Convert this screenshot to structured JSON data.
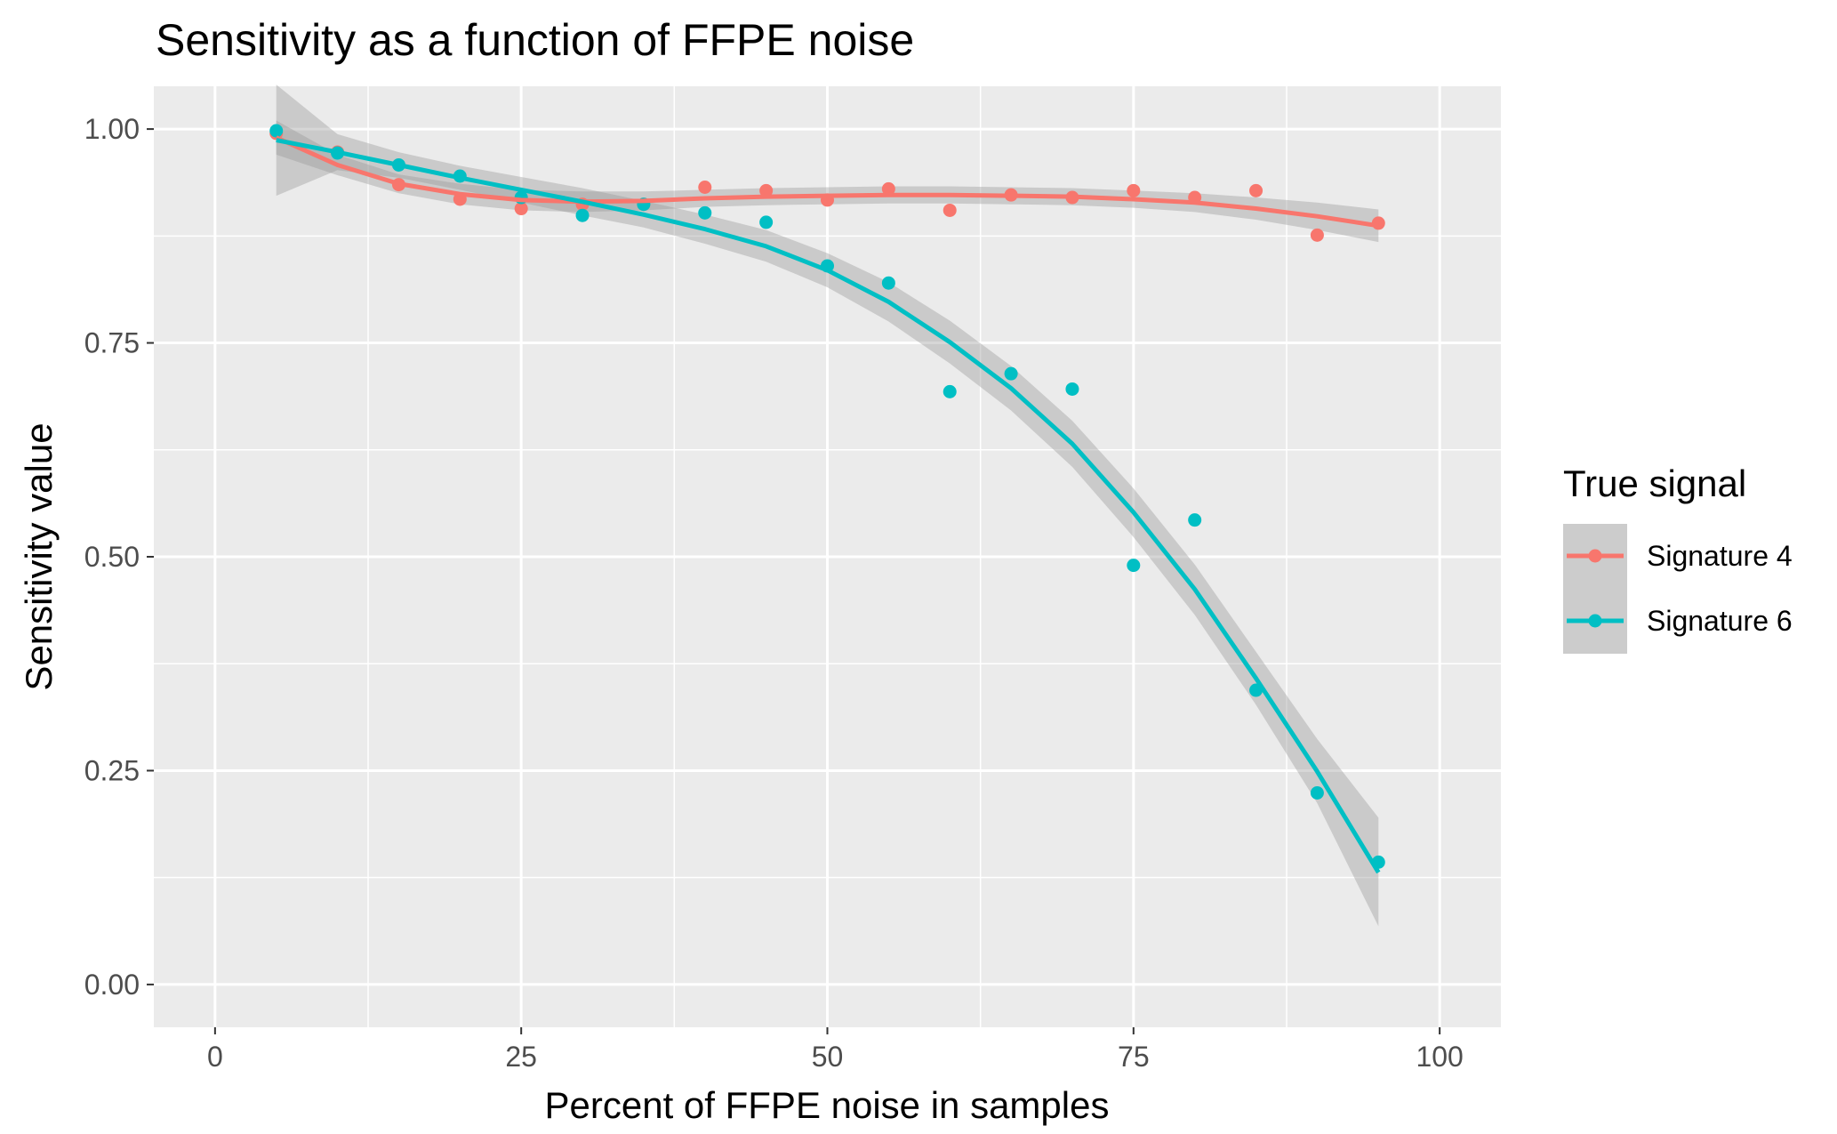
{
  "chart_data": {
    "type": "scatter",
    "title": "Sensitivity as a function of FFPE noise",
    "xlabel": "Percent of FFPE noise in samples",
    "ylabel": "Sensitivity value",
    "xlim": [
      -5,
      105
    ],
    "ylim": [
      -0.05,
      1.05
    ],
    "x_ticks": [
      0,
      25,
      50,
      75,
      100
    ],
    "x_tick_labels": [
      "0",
      "25",
      "50",
      "75",
      "100"
    ],
    "y_ticks": [
      0,
      0.25,
      0.5,
      0.75,
      1.0
    ],
    "y_tick_labels": [
      "0.00",
      "0.25",
      "0.50",
      "0.75",
      "1.00"
    ],
    "grid": true,
    "legend": {
      "title": "True signal",
      "position": "right"
    },
    "smoothing": "loess with confidence band",
    "series": [
      {
        "name": "Signature 4",
        "color": "#f8766d",
        "x": [
          5,
          10,
          15,
          20,
          25,
          30,
          35,
          40,
          45,
          50,
          55,
          60,
          65,
          70,
          75,
          80,
          85,
          90,
          95
        ],
        "y": [
          0.995,
          0.973,
          0.935,
          0.918,
          0.907,
          0.912,
          0.912,
          0.932,
          0.928,
          0.917,
          0.93,
          0.905,
          0.923,
          0.92,
          0.928,
          0.92,
          0.928,
          0.876,
          0.89
        ],
        "fit": [
          0.99,
          0.958,
          0.936,
          0.924,
          0.917,
          0.915,
          0.916,
          0.919,
          0.921,
          0.922,
          0.923,
          0.923,
          0.922,
          0.921,
          0.918,
          0.914,
          0.907,
          0.898,
          0.887
        ],
        "fit_lower": [
          0.97,
          0.946,
          0.925,
          0.912,
          0.905,
          0.903,
          0.905,
          0.909,
          0.911,
          0.912,
          0.913,
          0.913,
          0.912,
          0.911,
          0.908,
          0.903,
          0.894,
          0.882,
          0.868
        ],
        "fit_upper": [
          1.01,
          0.97,
          0.947,
          0.936,
          0.929,
          0.927,
          0.927,
          0.929,
          0.931,
          0.932,
          0.933,
          0.933,
          0.932,
          0.931,
          0.928,
          0.925,
          0.92,
          0.914,
          0.906
        ]
      },
      {
        "name": "Signature 6",
        "color": "#00bfc4",
        "x": [
          5,
          10,
          15,
          20,
          25,
          30,
          35,
          40,
          45,
          50,
          55,
          60,
          65,
          70,
          75,
          80,
          85,
          90,
          95
        ],
        "y": [
          0.998,
          0.972,
          0.958,
          0.945,
          0.92,
          0.899,
          0.912,
          0.902,
          0.891,
          0.84,
          0.82,
          0.693,
          0.714,
          0.696,
          0.49,
          0.543,
          0.344,
          0.224,
          0.143
        ],
        "fit": [
          0.987,
          0.973,
          0.958,
          0.943,
          0.929,
          0.915,
          0.9,
          0.883,
          0.863,
          0.835,
          0.798,
          0.751,
          0.697,
          0.632,
          0.552,
          0.462,
          0.358,
          0.249,
          0.131
        ],
        "fit_lower": [
          0.922,
          0.952,
          0.943,
          0.929,
          0.914,
          0.899,
          0.885,
          0.866,
          0.845,
          0.815,
          0.775,
          0.726,
          0.671,
          0.605,
          0.523,
          0.432,
          0.327,
          0.212,
          0.068
        ],
        "fit_upper": [
          1.052,
          0.994,
          0.973,
          0.957,
          0.944,
          0.931,
          0.916,
          0.9,
          0.882,
          0.855,
          0.821,
          0.776,
          0.723,
          0.659,
          0.58,
          0.491,
          0.389,
          0.287,
          0.195
        ]
      }
    ]
  }
}
